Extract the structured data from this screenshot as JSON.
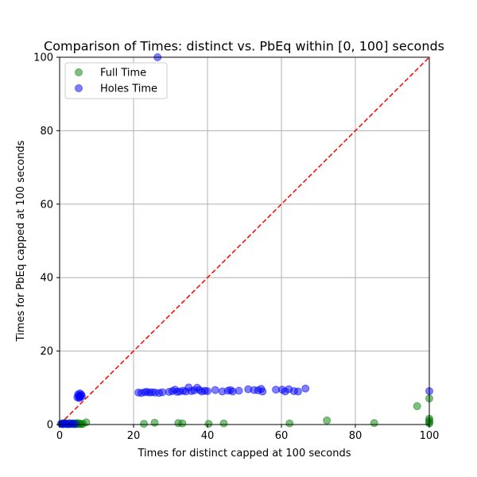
{
  "chart_data": {
    "type": "scatter",
    "title": "Comparison of Times: distinct vs. PbEq within [0, 100] seconds",
    "xlabel": "Times for distinct capped at 100 seconds",
    "ylabel": "Times for PbEq capped at 100 seconds",
    "xlim": [
      0,
      100
    ],
    "ylim": [
      0,
      100
    ],
    "xticks": [
      0,
      20,
      40,
      60,
      80,
      100
    ],
    "yticks": [
      0,
      20,
      40,
      60,
      80,
      100
    ],
    "grid": true,
    "legend_position": "top-left",
    "reference_line": {
      "style": "dashed",
      "color": "#ff0000",
      "from": [
        0,
        0
      ],
      "to": [
        100,
        100
      ]
    },
    "series": [
      {
        "name": "Full Time",
        "color": "#008000",
        "points": [
          [
            0.5,
            0.2
          ],
          [
            0.8,
            0.3
          ],
          [
            1.0,
            0.1
          ],
          [
            1.2,
            0.4
          ],
          [
            1.5,
            0.2
          ],
          [
            1.8,
            0.3
          ],
          [
            2.0,
            0.1
          ],
          [
            2.3,
            0.2
          ],
          [
            2.6,
            0.4
          ],
          [
            2.9,
            0.1
          ],
          [
            3.2,
            0.3
          ],
          [
            3.5,
            0.2
          ],
          [
            3.8,
            0.1
          ],
          [
            4.1,
            0.3
          ],
          [
            4.4,
            0.2
          ],
          [
            4.7,
            0.4
          ],
          [
            5.0,
            0.1
          ],
          [
            5.3,
            0.3
          ],
          [
            5.6,
            0.2
          ],
          [
            5.9,
            0.1
          ],
          [
            6.3,
            0.2
          ],
          [
            7.2,
            0.6
          ],
          [
            22.8,
            0.2
          ],
          [
            25.7,
            0.5
          ],
          [
            32.1,
            0.4
          ],
          [
            33.2,
            0.3
          ],
          [
            40.3,
            0.2
          ],
          [
            44.4,
            0.3
          ],
          [
            62.2,
            0.3
          ],
          [
            72.3,
            1.1
          ],
          [
            85.1,
            0.4
          ],
          [
            96.7,
            5.0
          ],
          [
            100,
            7.1
          ],
          [
            100,
            1.6
          ],
          [
            100,
            1.1
          ],
          [
            100,
            0.6
          ],
          [
            100,
            0.3
          ]
        ]
      },
      {
        "name": "Holes Time",
        "color": "#0000ff",
        "points": [
          [
            0.4,
            0.2
          ],
          [
            0.9,
            0.1
          ],
          [
            1.3,
            0.3
          ],
          [
            1.8,
            0.2
          ],
          [
            2.4,
            0.1
          ],
          [
            3.0,
            0.2
          ],
          [
            3.6,
            0.3
          ],
          [
            4.2,
            0.1
          ],
          [
            4.8,
            7.4
          ],
          [
            5.0,
            8.2
          ],
          [
            5.2,
            7.8
          ],
          [
            5.4,
            7.5
          ],
          [
            5.5,
            8.5
          ],
          [
            5.7,
            7.9
          ],
          [
            5.9,
            8.1
          ],
          [
            5.3,
            7.2
          ],
          [
            6.0,
            7.6
          ],
          [
            21.3,
            8.7
          ],
          [
            22.1,
            8.6
          ],
          [
            23.0,
            8.8
          ],
          [
            23.6,
            8.9
          ],
          [
            24.3,
            8.7
          ],
          [
            25.0,
            8.8
          ],
          [
            25.8,
            8.7
          ],
          [
            26.9,
            8.6
          ],
          [
            27.8,
            8.8
          ],
          [
            29.6,
            8.9
          ],
          [
            30.5,
            9.1
          ],
          [
            31.2,
            9.5
          ],
          [
            31.8,
            8.9
          ],
          [
            32.5,
            9.0
          ],
          [
            33.4,
            9.2
          ],
          [
            34.1,
            9.0
          ],
          [
            34.9,
            10.1
          ],
          [
            35.6,
            9.1
          ],
          [
            36.4,
            9.3
          ],
          [
            37.2,
            10.0
          ],
          [
            37.8,
            9.4
          ],
          [
            38.5,
            9.0
          ],
          [
            39.3,
            9.2
          ],
          [
            40.0,
            9.1
          ],
          [
            42.1,
            9.4
          ],
          [
            44.0,
            9.0
          ],
          [
            45.5,
            9.2
          ],
          [
            46.2,
            9.4
          ],
          [
            46.8,
            9.0
          ],
          [
            48.5,
            9.2
          ],
          [
            51.0,
            9.6
          ],
          [
            52.6,
            9.4
          ],
          [
            53.7,
            9.3
          ],
          [
            54.5,
            9.7
          ],
          [
            54.9,
            9.0
          ],
          [
            58.5,
            9.5
          ],
          [
            60.2,
            9.5
          ],
          [
            61.0,
            9.0
          ],
          [
            62.0,
            9.6
          ],
          [
            63.4,
            9.1
          ],
          [
            64.5,
            9.0
          ],
          [
            66.5,
            9.8
          ],
          [
            100,
            9.1
          ],
          [
            26.5,
            100
          ]
        ]
      }
    ]
  }
}
